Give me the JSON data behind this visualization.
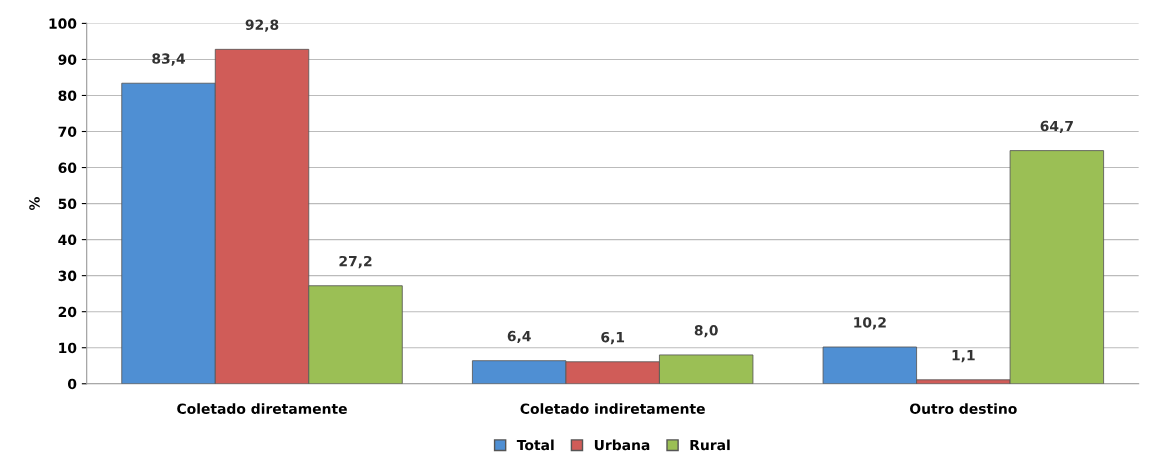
{
  "chart_data": {
    "type": "bar",
    "ylabel": "%",
    "categories": [
      "Coletado diretamente",
      "Coletado indiretamente",
      "Outro destino"
    ],
    "series": [
      {
        "name": "Total",
        "color": "#4f8fd3",
        "values": [
          83.4,
          6.4,
          10.2
        ],
        "value_labels": [
          "83,4",
          "6,4",
          "10,2"
        ]
      },
      {
        "name": "Urbana",
        "color": "#d05c58",
        "values": [
          92.8,
          6.1,
          1.1
        ],
        "value_labels": [
          "92,8",
          "6,1",
          "1,1"
        ]
      },
      {
        "name": "Rural",
        "color": "#9bbf55",
        "values": [
          27.2,
          8.0,
          64.7
        ],
        "value_labels": [
          "27,2",
          "8,0",
          "64,7"
        ]
      }
    ],
    "ylim": [
      0,
      100
    ],
    "yticks": [
      0,
      10,
      20,
      30,
      40,
      50,
      60,
      70,
      80,
      90,
      100
    ],
    "grid": "y",
    "legend": "bottom"
  }
}
